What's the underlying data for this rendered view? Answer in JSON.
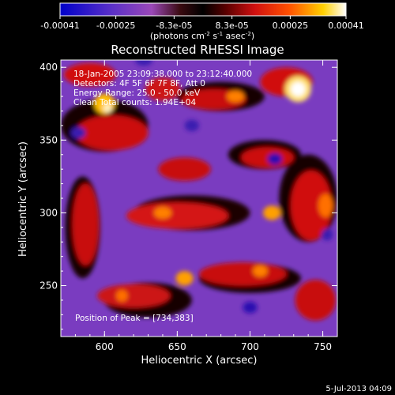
{
  "chart_data": {
    "type": "heatmap",
    "title": "Reconstructed RHESSI Image",
    "xlabel": "Heliocentric X (arcsec)",
    "ylabel": "Heliocentric Y (arcsec)",
    "xlim": [
      570,
      760
    ],
    "ylim": [
      215,
      405
    ],
    "x_ticks": [
      "600",
      "650",
      "700",
      "750"
    ],
    "y_ticks": [
      "250",
      "300",
      "350",
      "400"
    ],
    "colorbar": {
      "ticks": [
        "-0.00041",
        "-0.00025",
        "-8.3e-05",
        "8.3e-05",
        "0.00025",
        "0.00041"
      ],
      "unit_main": "(photons cm",
      "unit_sup1": "-2",
      "unit_mid": " s",
      "unit_sup2": "-1",
      "unit_mid2": " asec",
      "unit_sup3": "-2",
      "unit_end": ")",
      "range": [
        -0.00041,
        0.00041
      ],
      "colors": [
        "#0000c8",
        "#7a3cc8",
        "#b048b0",
        "#1a0000",
        "#d01010",
        "#ff5000",
        "#ffd000",
        "#ffffff"
      ]
    },
    "annotations": {
      "time": "18-Jan-2005 23:09:38.000 to 23:12:40.000",
      "detectors": "Detectors: 4F 5F 6F 7F 8F, Att 0",
      "energy": "Energy Range: 25.0 - 50.0 keV",
      "clean": "Clean     Total counts: 1.94E+04",
      "peak": "Position of Peak = [734,383]"
    },
    "peak_position": [
      734,
      383
    ],
    "footer_date": "5-Jul-2013 04:09"
  }
}
